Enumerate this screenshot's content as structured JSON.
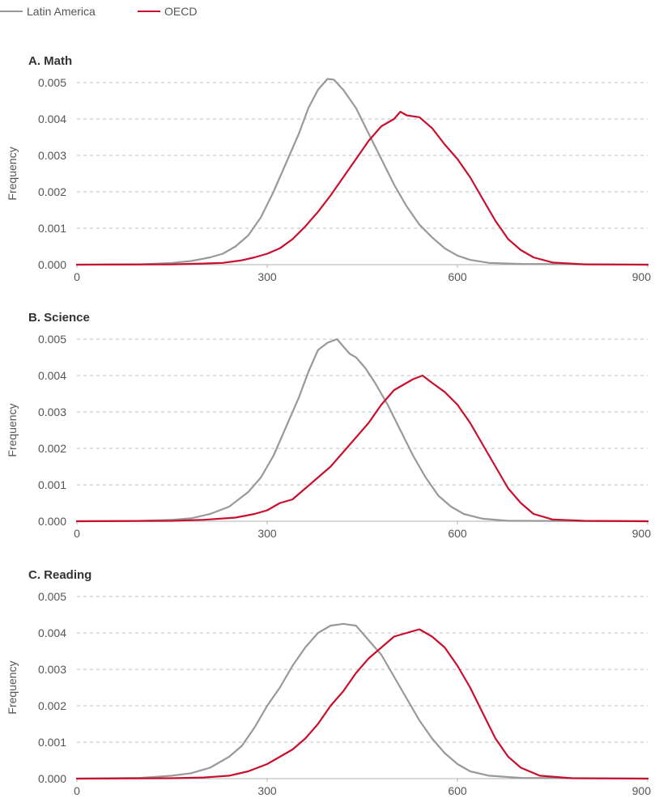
{
  "legend": {
    "latam_label": "Latin America",
    "oecd_label": "OECD"
  },
  "colors": {
    "latam": "#999999",
    "oecd": "#c8102e",
    "grid": "#bdbdbd",
    "axis": "#b0b0b0",
    "text": "#555555",
    "title": "#333333"
  },
  "chart_data": [
    {
      "type": "line",
      "title": "A. Math",
      "ylabel": "Frequency",
      "xlabel": "",
      "xlim": [
        0,
        900
      ],
      "ylim": [
        0,
        0.005
      ],
      "xticks": [
        "0",
        "300",
        "600",
        "900"
      ],
      "yticks": [
        "0.000",
        "0.001",
        "0.002",
        "0.003",
        "0.004",
        "0.005"
      ],
      "grid": "horizontal dashed",
      "legend": "top-left",
      "series": [
        {
          "name": "Latin America",
          "points": [
            [
              0,
              0
            ],
            [
              100,
              1e-05
            ],
            [
              150,
              5e-05
            ],
            [
              180,
              0.0001
            ],
            [
              210,
              0.0002
            ],
            [
              230,
              0.0003
            ],
            [
              250,
              0.0005
            ],
            [
              270,
              0.0008
            ],
            [
              290,
              0.0013
            ],
            [
              310,
              0.002
            ],
            [
              330,
              0.0028
            ],
            [
              350,
              0.0036
            ],
            [
              365,
              0.0043
            ],
            [
              380,
              0.0048
            ],
            [
              395,
              0.0051
            ],
            [
              405,
              0.00508
            ],
            [
              420,
              0.0048
            ],
            [
              440,
              0.0043
            ],
            [
              460,
              0.0036
            ],
            [
              480,
              0.0029
            ],
            [
              500,
              0.0022
            ],
            [
              520,
              0.0016
            ],
            [
              540,
              0.0011
            ],
            [
              560,
              0.00075
            ],
            [
              580,
              0.00045
            ],
            [
              600,
              0.00025
            ],
            [
              620,
              0.00013
            ],
            [
              650,
              5e-05
            ],
            [
              700,
              2e-05
            ],
            [
              900,
              0
            ]
          ]
        },
        {
          "name": "OECD",
          "points": [
            [
              0,
              0
            ],
            [
              150,
              1e-05
            ],
            [
              200,
              3e-05
            ],
            [
              230,
              5e-05
            ],
            [
              260,
              0.00012
            ],
            [
              280,
              0.0002
            ],
            [
              300,
              0.0003
            ],
            [
              320,
              0.00045
            ],
            [
              340,
              0.0007
            ],
            [
              360,
              0.00105
            ],
            [
              380,
              0.00145
            ],
            [
              400,
              0.0019
            ],
            [
              420,
              0.0024
            ],
            [
              440,
              0.0029
            ],
            [
              460,
              0.0034
            ],
            [
              480,
              0.0038
            ],
            [
              500,
              0.004
            ],
            [
              510,
              0.0042
            ],
            [
              520,
              0.0041
            ],
            [
              540,
              0.00405
            ],
            [
              560,
              0.00375
            ],
            [
              580,
              0.0033
            ],
            [
              600,
              0.0029
            ],
            [
              620,
              0.0024
            ],
            [
              640,
              0.0018
            ],
            [
              660,
              0.0012
            ],
            [
              680,
              0.0007
            ],
            [
              700,
              0.0004
            ],
            [
              720,
              0.0002
            ],
            [
              750,
              6e-05
            ],
            [
              800,
              1e-05
            ],
            [
              900,
              0
            ]
          ]
        }
      ]
    },
    {
      "type": "line",
      "title": "B. Science",
      "ylabel": "Frequency",
      "xlabel": "",
      "xlim": [
        0,
        900
      ],
      "ylim": [
        0,
        0.005
      ],
      "xticks": [
        "0",
        "300",
        "600",
        "900"
      ],
      "yticks": [
        "0.000",
        "0.001",
        "0.002",
        "0.003",
        "0.004",
        "0.005"
      ],
      "grid": "horizontal dashed",
      "legend": "top-left",
      "series": [
        {
          "name": "Latin America",
          "points": [
            [
              0,
              0
            ],
            [
              100,
              1e-05
            ],
            [
              150,
              4e-05
            ],
            [
              180,
              8e-05
            ],
            [
              210,
              0.0002
            ],
            [
              240,
              0.0004
            ],
            [
              270,
              0.0008
            ],
            [
              290,
              0.0012
            ],
            [
              310,
              0.0018
            ],
            [
              330,
              0.0026
            ],
            [
              350,
              0.0034
            ],
            [
              365,
              0.0041
            ],
            [
              380,
              0.0047
            ],
            [
              395,
              0.0049
            ],
            [
              410,
              0.005
            ],
            [
              420,
              0.0048
            ],
            [
              430,
              0.0046
            ],
            [
              440,
              0.0045
            ],
            [
              455,
              0.0042
            ],
            [
              470,
              0.0038
            ],
            [
              490,
              0.0032
            ],
            [
              510,
              0.0025
            ],
            [
              530,
              0.0018
            ],
            [
              550,
              0.0012
            ],
            [
              570,
              0.0007
            ],
            [
              590,
              0.0004
            ],
            [
              610,
              0.0002
            ],
            [
              640,
              7e-05
            ],
            [
              680,
              1e-05
            ],
            [
              900,
              0
            ]
          ]
        },
        {
          "name": "OECD",
          "points": [
            [
              0,
              0
            ],
            [
              150,
              1e-05
            ],
            [
              200,
              4e-05
            ],
            [
              250,
              0.0001
            ],
            [
              280,
              0.0002
            ],
            [
              300,
              0.0003
            ],
            [
              320,
              0.0005
            ],
            [
              340,
              0.0006
            ],
            [
              360,
              0.0009
            ],
            [
              380,
              0.0012
            ],
            [
              400,
              0.0015
            ],
            [
              420,
              0.0019
            ],
            [
              440,
              0.0023
            ],
            [
              460,
              0.0027
            ],
            [
              480,
              0.0032
            ],
            [
              500,
              0.0036
            ],
            [
              520,
              0.0038
            ],
            [
              530,
              0.0039
            ],
            [
              545,
              0.004
            ],
            [
              560,
              0.0038
            ],
            [
              580,
              0.00355
            ],
            [
              600,
              0.0032
            ],
            [
              620,
              0.0027
            ],
            [
              640,
              0.0021
            ],
            [
              660,
              0.0015
            ],
            [
              680,
              0.0009
            ],
            [
              700,
              0.0005
            ],
            [
              720,
              0.0002
            ],
            [
              750,
              5e-05
            ],
            [
              800,
              1e-05
            ],
            [
              900,
              0
            ]
          ]
        }
      ]
    },
    {
      "type": "line",
      "title": "C. Reading",
      "ylabel": "Frequency",
      "xlabel": "",
      "xlim": [
        0,
        900
      ],
      "ylim": [
        0,
        0.005
      ],
      "xticks": [
        "0",
        "300",
        "600",
        "900"
      ],
      "yticks": [
        "0.000",
        "0.001",
        "0.002",
        "0.003",
        "0.004",
        "0.005"
      ],
      "grid": "horizontal dashed",
      "legend": "top-left",
      "series": [
        {
          "name": "Latin America",
          "points": [
            [
              0,
              0
            ],
            [
              100,
              2e-05
            ],
            [
              150,
              8e-05
            ],
            [
              180,
              0.00015
            ],
            [
              210,
              0.0003
            ],
            [
              240,
              0.0006
            ],
            [
              260,
              0.0009
            ],
            [
              280,
              0.0014
            ],
            [
              300,
              0.002
            ],
            [
              320,
              0.0025
            ],
            [
              340,
              0.0031
            ],
            [
              360,
              0.0036
            ],
            [
              380,
              0.004
            ],
            [
              400,
              0.0042
            ],
            [
              420,
              0.00425
            ],
            [
              440,
              0.0042
            ],
            [
              460,
              0.0038
            ],
            [
              480,
              0.0034
            ],
            [
              500,
              0.0028
            ],
            [
              520,
              0.0022
            ],
            [
              540,
              0.0016
            ],
            [
              560,
              0.0011
            ],
            [
              580,
              0.0007
            ],
            [
              600,
              0.0004
            ],
            [
              620,
              0.0002
            ],
            [
              650,
              8e-05
            ],
            [
              700,
              2e-05
            ],
            [
              900,
              0
            ]
          ]
        },
        {
          "name": "OECD",
          "points": [
            [
              0,
              0
            ],
            [
              150,
              1e-05
            ],
            [
              200,
              3e-05
            ],
            [
              240,
              8e-05
            ],
            [
              270,
              0.0002
            ],
            [
              300,
              0.0004
            ],
            [
              320,
              0.0006
            ],
            [
              340,
              0.0008
            ],
            [
              360,
              0.0011
            ],
            [
              380,
              0.0015
            ],
            [
              400,
              0.002
            ],
            [
              420,
              0.0024
            ],
            [
              440,
              0.0029
            ],
            [
              460,
              0.0033
            ],
            [
              480,
              0.0036
            ],
            [
              500,
              0.0039
            ],
            [
              520,
              0.004
            ],
            [
              540,
              0.0041
            ],
            [
              560,
              0.0039
            ],
            [
              580,
              0.0036
            ],
            [
              600,
              0.0031
            ],
            [
              620,
              0.0025
            ],
            [
              640,
              0.0018
            ],
            [
              660,
              0.0011
            ],
            [
              680,
              0.0006
            ],
            [
              700,
              0.0003
            ],
            [
              730,
              8e-05
            ],
            [
              780,
              1e-05
            ],
            [
              900,
              0
            ]
          ]
        }
      ]
    }
  ]
}
